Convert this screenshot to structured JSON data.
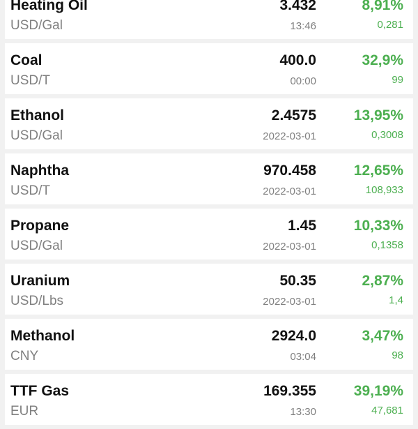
{
  "commodities": [
    {
      "name": "Heating Oil",
      "unit": "USD/Gal",
      "price": "3.432",
      "time": "13:46",
      "change_pct": "8,91%",
      "change": "0,281"
    },
    {
      "name": "Coal",
      "unit": "USD/T",
      "price": "400.0",
      "time": "00:00",
      "change_pct": "32,9%",
      "change": "99"
    },
    {
      "name": "Ethanol",
      "unit": "USD/Gal",
      "price": "2.4575",
      "time": "2022-03-01",
      "change_pct": "13,95%",
      "change": "0,3008"
    },
    {
      "name": "Naphtha",
      "unit": "USD/T",
      "price": "970.458",
      "time": "2022-03-01",
      "change_pct": "12,65%",
      "change": "108,933"
    },
    {
      "name": "Propane",
      "unit": "USD/Gal",
      "price": "1.45",
      "time": "2022-03-01",
      "change_pct": "10,33%",
      "change": "0,1358"
    },
    {
      "name": "Uranium",
      "unit": "USD/Lbs",
      "price": "50.35",
      "time": "2022-03-01",
      "change_pct": "2,87%",
      "change": "1,4"
    },
    {
      "name": "Methanol",
      "unit": "CNY",
      "price": "2924.0",
      "time": "03:04",
      "change_pct": "3,47%",
      "change": "98"
    },
    {
      "name": "TTF Gas",
      "unit": "EUR",
      "price": "169.355",
      "time": "13:30",
      "change_pct": "39,19%",
      "change": "47,681"
    }
  ],
  "colors": {
    "positive": "#4caf50",
    "background": "#f1f1f1",
    "card": "#ffffff"
  }
}
